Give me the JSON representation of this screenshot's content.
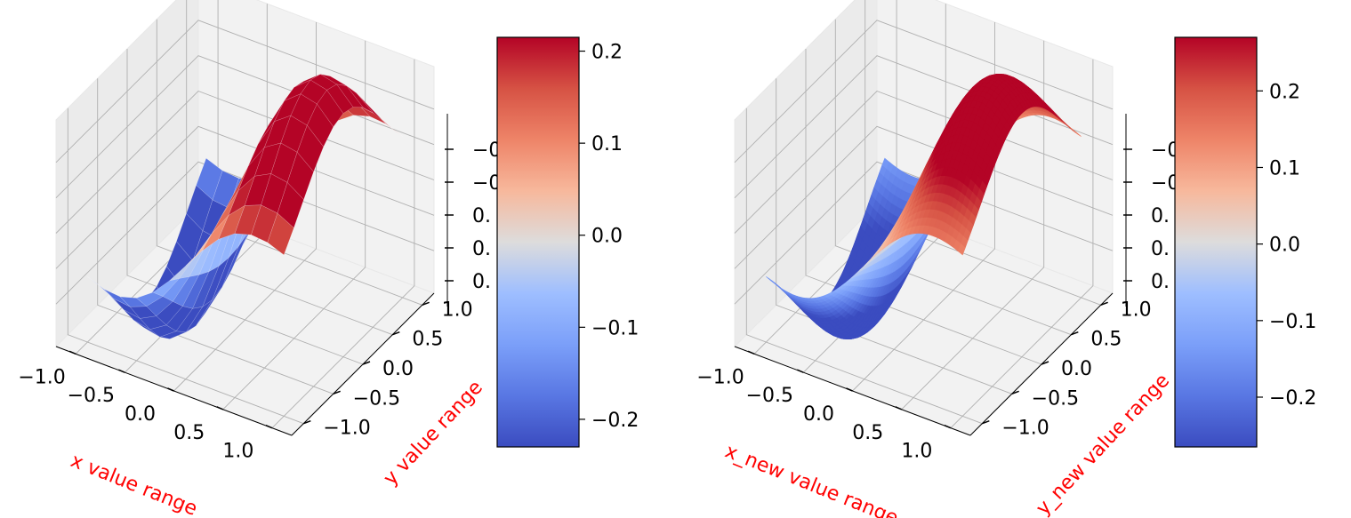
{
  "chart_data": [
    {
      "type": "surface3d",
      "resolution": "coarse",
      "function": "x * exp(-x^2 - y^2)",
      "xlabel": "x value range",
      "ylabel": "y value range",
      "zlabel": "",
      "xlim": [
        -1.2,
        1.2
      ],
      "ylim": [
        -1.2,
        1.2
      ],
      "zlim": [
        -0.32,
        0.32
      ],
      "x_ticks": [
        "−1.0",
        "−0.5",
        "0.0",
        "0.5",
        "1.0"
      ],
      "y_ticks": [
        "−1.0",
        "−0.5",
        "0.0",
        "0.5",
        "1.0"
      ],
      "z_ticks": [
        "−0.",
        "−0",
        "0.",
        "0.",
        "0."
      ],
      "colormap": "coolwarm",
      "colorbar": {
        "range": [
          -0.23,
          0.215
        ],
        "ticks": [
          -0.2,
          -0.1,
          0.0,
          0.1,
          0.2
        ],
        "tick_labels": [
          "−0.2",
          "−0.1",
          "0.0",
          "0.1",
          "0.2"
        ]
      },
      "label_color": "#ff0000",
      "grid": true
    },
    {
      "type": "surface3d",
      "resolution": "fine",
      "function": "x * exp(-x^2 - y^2)",
      "xlabel": "x_new value range",
      "ylabel": "y_new value range",
      "zlabel": "",
      "xlim": [
        -1.2,
        1.2
      ],
      "ylim": [
        -1.2,
        1.2
      ],
      "zlim": [
        -0.32,
        0.32
      ],
      "x_ticks": [
        "−1.0",
        "−0.5",
        "0.0",
        "0.5",
        "1.0"
      ],
      "y_ticks": [
        "−1.0",
        "−0.5",
        "0.0",
        "0.5",
        "1.0"
      ],
      "z_ticks": [
        "−0.",
        "−0.",
        "0.",
        "0.",
        "0."
      ],
      "colormap": "coolwarm",
      "colorbar": {
        "range": [
          -0.265,
          0.27
        ],
        "ticks": [
          -0.2,
          -0.1,
          0.0,
          0.1,
          0.2
        ],
        "tick_labels": [
          "−0.2",
          "−0.1",
          "0.0",
          "0.1",
          "0.2"
        ]
      },
      "label_color": "#ff0000",
      "grid": true
    }
  ]
}
